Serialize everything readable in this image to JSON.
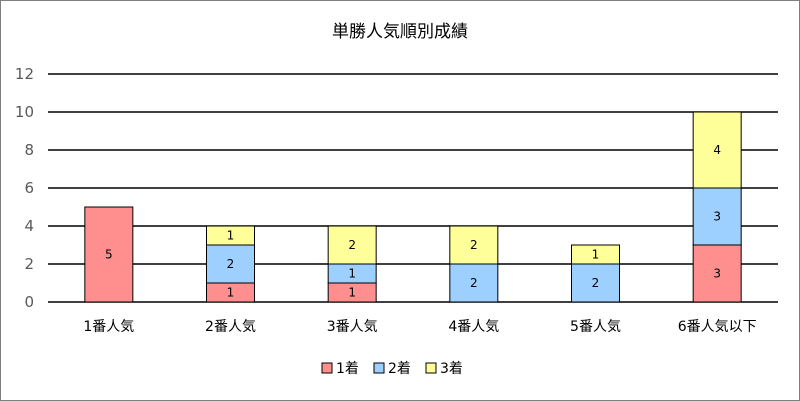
{
  "chart_data": {
    "type": "bar",
    "stacked": true,
    "title": "単勝人気順別成績",
    "xlabel": "",
    "ylabel": "",
    "ylim": [
      0,
      12
    ],
    "yticks": [
      0,
      2,
      4,
      6,
      8,
      10,
      12
    ],
    "grid": true,
    "legend_position": "bottom",
    "categories": [
      "1番人気",
      "2番人気",
      "3番人気",
      "4番人気",
      "5番人気",
      "6番人気以下"
    ],
    "series": [
      {
        "name": "1着",
        "color": "#ff8f8f",
        "values": [
          5,
          1,
          1,
          0,
          0,
          3
        ]
      },
      {
        "name": "2着",
        "color": "#9dcfff",
        "values": [
          0,
          2,
          1,
          2,
          2,
          3
        ]
      },
      {
        "name": "3着",
        "color": "#ffff99",
        "values": [
          0,
          1,
          2,
          2,
          1,
          4
        ]
      }
    ]
  }
}
